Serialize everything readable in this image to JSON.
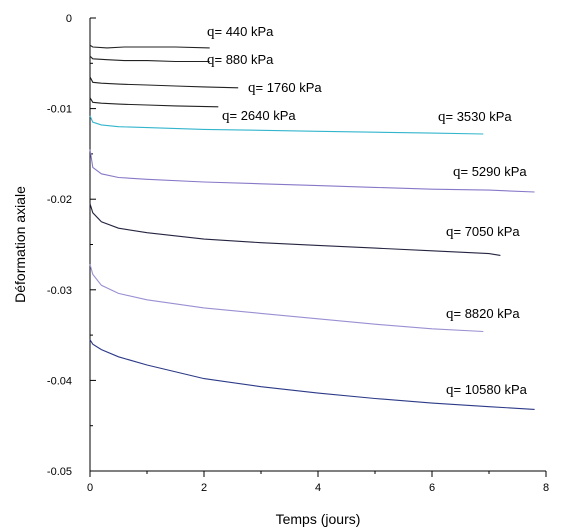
{
  "chart_data": {
    "type": "line",
    "title": "",
    "xlabel": "Temps (jours)",
    "ylabel": "Déformation axiale",
    "xlim": [
      0,
      8
    ],
    "ylim": [
      -0.05,
      0
    ],
    "x_ticks": [
      "0",
      "2",
      "4",
      "6",
      "8"
    ],
    "y_ticks": [
      "0",
      "-0.01",
      "-0.02",
      "-0.03",
      "-0.04",
      "-0.05"
    ],
    "grid": false,
    "legend": "inline labels at curve ends",
    "series": [
      {
        "name": "q= 440 kPa",
        "color": "#222222",
        "x": [
          0,
          0.05,
          0.3,
          0.6,
          1,
          1.5,
          2.1
        ],
        "y": [
          -0.003,
          -0.0032,
          -0.0033,
          -0.0032,
          -0.0032,
          -0.0032,
          -0.0033
        ]
      },
      {
        "name": "q= 880 kPa",
        "color": "#222222",
        "x": [
          0,
          0.05,
          0.3,
          0.6,
          1,
          1.5,
          2.1
        ],
        "y": [
          -0.0042,
          -0.0045,
          -0.0046,
          -0.0047,
          -0.0047,
          -0.0048,
          -0.0048
        ]
      },
      {
        "name": "q= 1760 kPa",
        "color": "#222222",
        "x": [
          0,
          0.05,
          0.2,
          0.5,
          1,
          1.5,
          2,
          2.6
        ],
        "y": [
          -0.0065,
          -0.0071,
          -0.0072,
          -0.0073,
          -0.0074,
          -0.0075,
          -0.0076,
          -0.0077
        ]
      },
      {
        "name": "q= 2640 kPa",
        "color": "#222222",
        "x": [
          0,
          0.05,
          0.2,
          0.5,
          1,
          1.5,
          2.25
        ],
        "y": [
          -0.0088,
          -0.0093,
          -0.0094,
          -0.0095,
          -0.0096,
          -0.0097,
          -0.0098
        ]
      },
      {
        "name": "q= 3530 kPa",
        "color": "#33b5cc",
        "x": [
          0,
          0.05,
          0.2,
          0.5,
          1,
          2,
          3,
          4,
          5,
          6,
          6.9
        ],
        "y": [
          -0.0108,
          -0.0115,
          -0.0118,
          -0.012,
          -0.0121,
          -0.0123,
          -0.0124,
          -0.0125,
          -0.0126,
          -0.0127,
          -0.0128
        ]
      },
      {
        "name": "q= 5290 kPa",
        "color": "#8878c8",
        "x": [
          0,
          0.05,
          0.2,
          0.5,
          1,
          2,
          3,
          4,
          5,
          6,
          7,
          7.8
        ],
        "y": [
          -0.0145,
          -0.0165,
          -0.0172,
          -0.0176,
          -0.0178,
          -0.0181,
          -0.0183,
          -0.0185,
          -0.0187,
          -0.0189,
          -0.019,
          -0.0192
        ]
      },
      {
        "name": "q= 7050 kPa",
        "color": "#242440",
        "x": [
          0,
          0.05,
          0.2,
          0.5,
          1,
          2,
          3,
          4,
          5,
          6,
          7,
          7.2
        ],
        "y": [
          -0.0205,
          -0.0215,
          -0.0225,
          -0.0232,
          -0.0237,
          -0.0244,
          -0.0248,
          -0.0251,
          -0.0254,
          -0.0257,
          -0.026,
          -0.0262
        ]
      },
      {
        "name": "q= 8820 kPa",
        "color": "#9a90d2",
        "x": [
          0,
          0.05,
          0.2,
          0.5,
          1,
          2,
          3,
          4,
          5,
          6,
          6.9
        ],
        "y": [
          -0.0272,
          -0.0283,
          -0.0295,
          -0.0304,
          -0.0311,
          -0.032,
          -0.0326,
          -0.0332,
          -0.0338,
          -0.0343,
          -0.0346
        ]
      },
      {
        "name": "q= 10580 kPa",
        "color": "#2c3a88",
        "x": [
          0,
          0.05,
          0.2,
          0.5,
          1,
          2,
          3,
          4,
          5,
          6,
          7,
          7.8
        ],
        "y": [
          -0.0355,
          -0.036,
          -0.0366,
          -0.0374,
          -0.0383,
          -0.0398,
          -0.0407,
          -0.0414,
          -0.042,
          -0.0425,
          -0.0429,
          -0.0432
        ]
      }
    ]
  }
}
